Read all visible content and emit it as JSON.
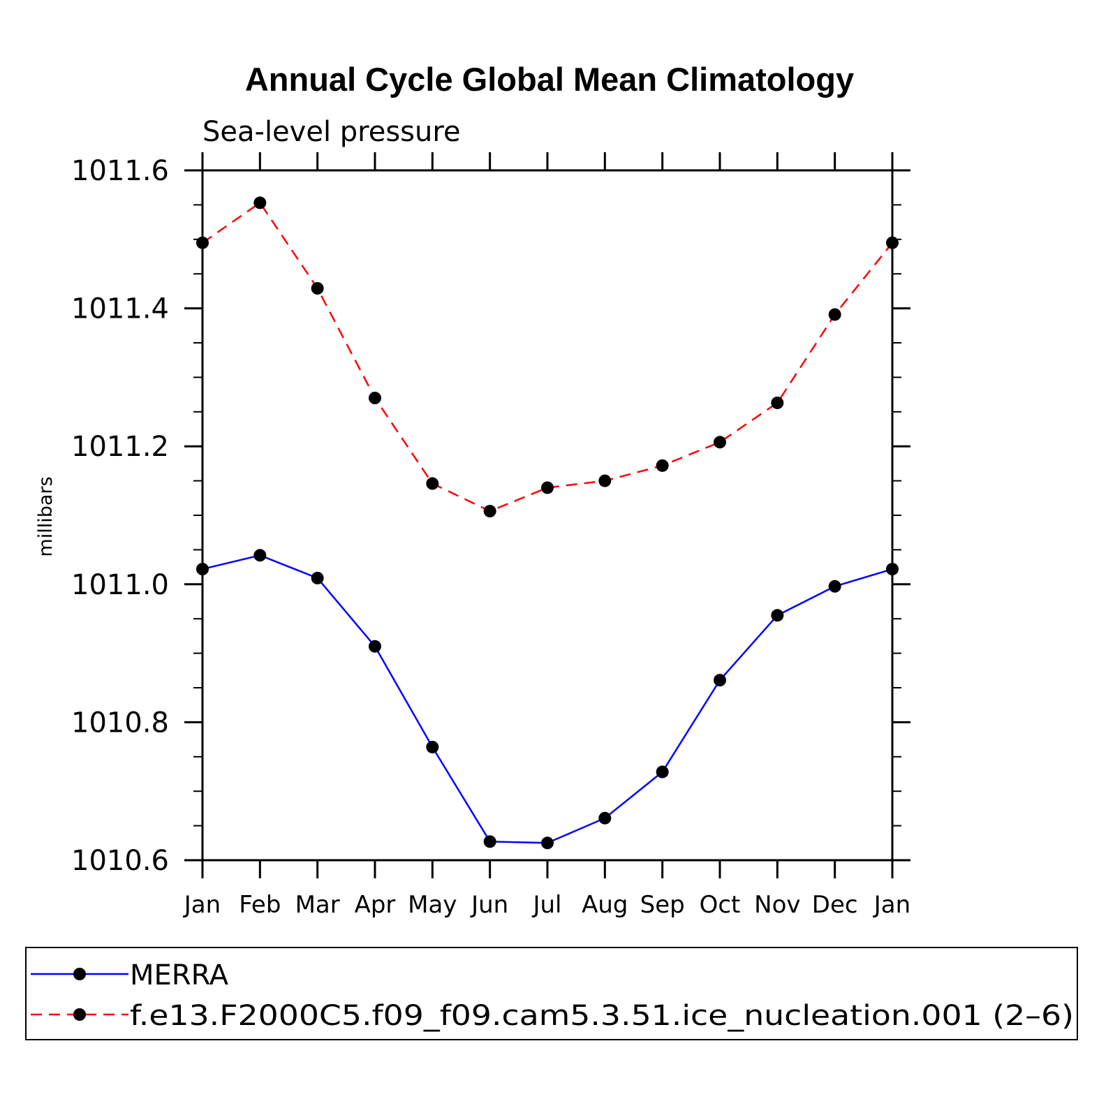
{
  "chart_data": {
    "type": "line",
    "title": "Annual Cycle Global Mean Climatology",
    "subtitle": "Sea-level pressure",
    "xlabel": "",
    "ylabel": "millibars",
    "categories": [
      "Jan",
      "Feb",
      "Mar",
      "Apr",
      "May",
      "Jun",
      "Jul",
      "Aug",
      "Sep",
      "Oct",
      "Nov",
      "Dec",
      "Jan"
    ],
    "ylim": [
      1010.6,
      1011.6
    ],
    "yticks": [
      "1010.6",
      "1010.8",
      "1011.0",
      "1011.2",
      "1011.4",
      "1011.6"
    ],
    "ytick_values": [
      1010.6,
      1010.8,
      1011.0,
      1011.2,
      1011.4,
      1011.6
    ],
    "legend_position": "bottom",
    "series": [
      {
        "name": "MERRA",
        "color": "#0000ff",
        "style": "solid",
        "values": [
          1011.022,
          1011.042,
          1011.009,
          1010.91,
          1010.764,
          1010.627,
          1010.625,
          1010.661,
          1010.728,
          1010.861,
          1010.955,
          1010.997,
          1011.022
        ]
      },
      {
        "name": "f.e13.F2000C5.f09_f09.cam5.3.51.ice_nucleation.001 (2–6)",
        "color": "#ff0000",
        "style": "dashed",
        "values": [
          1011.495,
          1011.553,
          1011.429,
          1011.27,
          1011.146,
          1011.106,
          1011.14,
          1011.15,
          1011.172,
          1011.206,
          1011.263,
          1011.391,
          1011.495
        ]
      }
    ],
    "marker_color": "#000000"
  }
}
